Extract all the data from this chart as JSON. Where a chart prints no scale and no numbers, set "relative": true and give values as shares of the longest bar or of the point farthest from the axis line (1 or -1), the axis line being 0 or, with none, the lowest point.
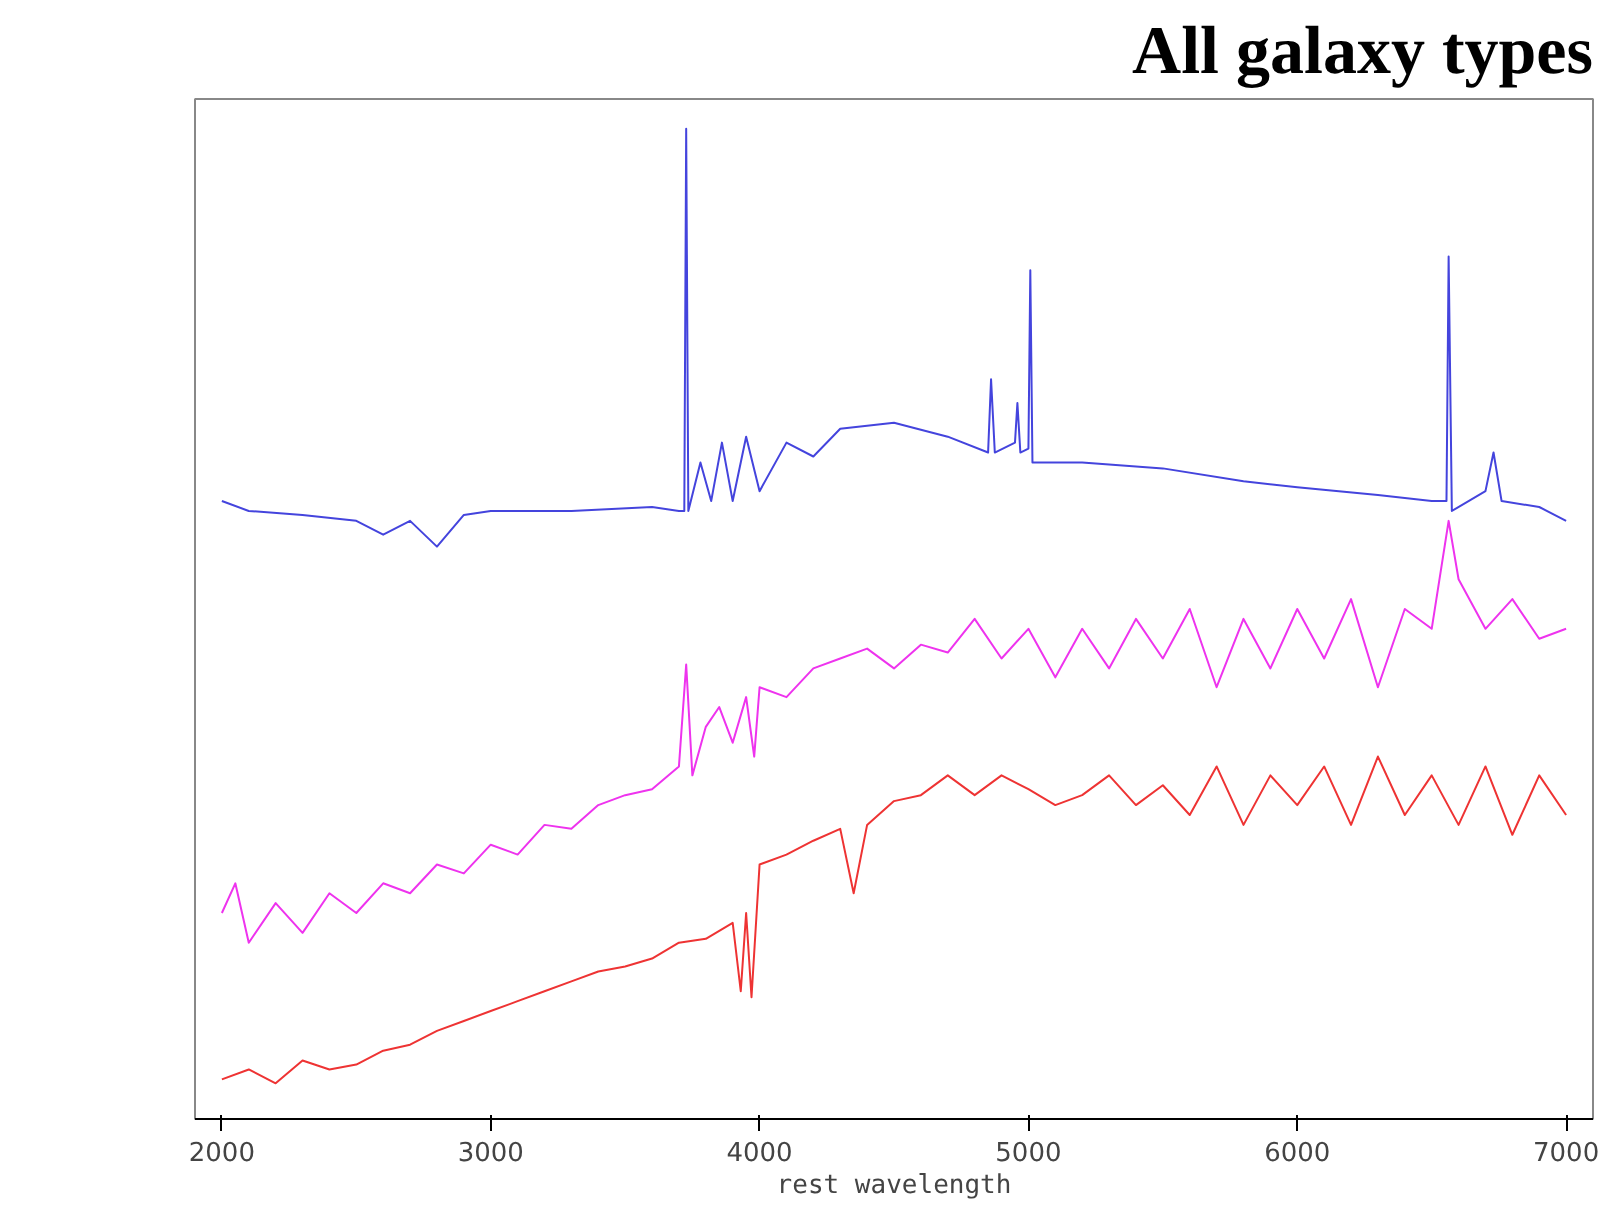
{
  "chart_data": {
    "type": "line",
    "title": "All galaxy types",
    "xlabel": "rest wavelength",
    "relative": true,
    "xlim": [
      1900,
      7100
    ],
    "xticks": [
      2000,
      3000,
      4000,
      5000,
      6000,
      7000
    ],
    "grid": false,
    "marker": "none",
    "line_style": "solid",
    "series": [
      {
        "color": "#4444dd",
        "x": [
          2000,
          2100,
          2300,
          2500,
          2600,
          2700,
          2800,
          2900,
          3000,
          3300,
          3600,
          3700,
          3720,
          3727,
          3735,
          3780,
          3820,
          3860,
          3900,
          3950,
          4000,
          4100,
          4200,
          4300,
          4500,
          4700,
          4850,
          4861,
          4875,
          4950,
          4959,
          4970,
          5000,
          5007,
          5015,
          5200,
          5500,
          5800,
          6000,
          6300,
          6500,
          6555,
          6563,
          6575,
          6700,
          6730,
          6760,
          6900,
          7000
        ],
        "values": [
          0.624,
          0.614,
          0.61,
          0.604,
          0.59,
          0.604,
          0.578,
          0.61,
          0.614,
          0.614,
          0.618,
          0.614,
          0.614,
          1.0,
          0.614,
          0.663,
          0.624,
          0.683,
          0.624,
          0.689,
          0.634,
          0.683,
          0.669,
          0.697,
          0.703,
          0.689,
          0.673,
          0.747,
          0.673,
          0.683,
          0.723,
          0.673,
          0.677,
          0.857,
          0.663,
          0.663,
          0.657,
          0.644,
          0.638,
          0.63,
          0.624,
          0.624,
          0.871,
          0.614,
          0.634,
          0.673,
          0.624,
          0.618,
          0.604
        ]
      },
      {
        "color": "#ee33ee",
        "x": [
          2000,
          2050,
          2100,
          2200,
          2300,
          2400,
          2500,
          2600,
          2700,
          2800,
          2900,
          3000,
          3100,
          3200,
          3300,
          3400,
          3500,
          3600,
          3700,
          3727,
          3750,
          3800,
          3850,
          3900,
          3950,
          3980,
          4000,
          4100,
          4200,
          4300,
          4400,
          4500,
          4600,
          4700,
          4800,
          4900,
          5000,
          5100,
          5200,
          5300,
          5400,
          5500,
          5600,
          5700,
          5800,
          5900,
          6000,
          6100,
          6200,
          6300,
          6400,
          6500,
          6563,
          6600,
          6700,
          6800,
          6900,
          7000
        ],
        "values": [
          0.208,
          0.238,
          0.178,
          0.218,
          0.188,
          0.228,
          0.208,
          0.238,
          0.228,
          0.257,
          0.248,
          0.277,
          0.267,
          0.297,
          0.293,
          0.317,
          0.327,
          0.333,
          0.356,
          0.459,
          0.347,
          0.396,
          0.416,
          0.38,
          0.426,
          0.366,
          0.436,
          0.426,
          0.455,
          0.465,
          0.475,
          0.455,
          0.479,
          0.471,
          0.505,
          0.465,
          0.495,
          0.446,
          0.495,
          0.455,
          0.505,
          0.465,
          0.515,
          0.436,
          0.505,
          0.455,
          0.515,
          0.465,
          0.525,
          0.436,
          0.515,
          0.495,
          0.604,
          0.545,
          0.495,
          0.525,
          0.485,
          0.495
        ]
      },
      {
        "color": "#ee3333",
        "x": [
          2000,
          2100,
          2200,
          2300,
          2400,
          2500,
          2600,
          2700,
          2800,
          2900,
          3000,
          3100,
          3200,
          3300,
          3400,
          3500,
          3600,
          3700,
          3800,
          3900,
          3930,
          3950,
          3970,
          4000,
          4100,
          4200,
          4300,
          4350,
          4400,
          4500,
          4600,
          4700,
          4800,
          4900,
          5000,
          5100,
          5200,
          5300,
          5400,
          5500,
          5600,
          5700,
          5800,
          5900,
          6000,
          6100,
          6200,
          6300,
          6400,
          6500,
          6600,
          6700,
          6800,
          6900,
          7000
        ],
        "values": [
          0.04,
          0.05,
          0.036,
          0.059,
          0.05,
          0.055,
          0.069,
          0.075,
          0.089,
          0.099,
          0.109,
          0.119,
          0.129,
          0.139,
          0.149,
          0.154,
          0.162,
          0.178,
          0.182,
          0.198,
          0.129,
          0.208,
          0.123,
          0.257,
          0.267,
          0.281,
          0.293,
          0.228,
          0.297,
          0.321,
          0.327,
          0.347,
          0.327,
          0.347,
          0.333,
          0.317,
          0.327,
          0.347,
          0.317,
          0.337,
          0.307,
          0.356,
          0.297,
          0.347,
          0.317,
          0.356,
          0.297,
          0.366,
          0.307,
          0.347,
          0.297,
          0.356,
          0.287,
          0.347,
          0.307
        ]
      }
    ]
  }
}
